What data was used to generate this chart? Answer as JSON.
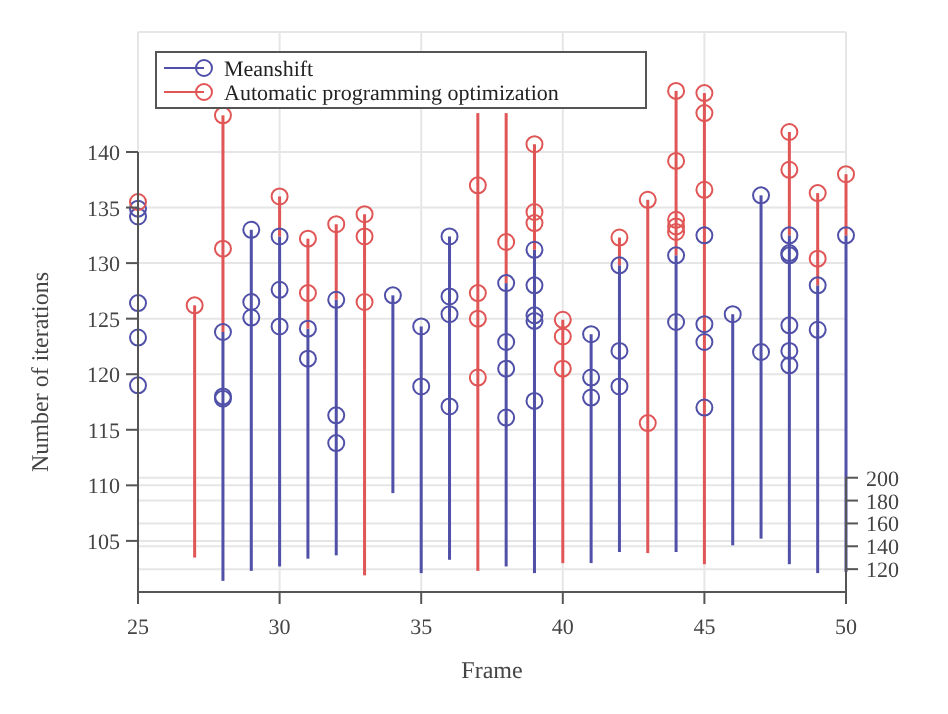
{
  "chart_data": {
    "type": "scatter",
    "xlabel": "Frame",
    "ylabel": "Number of iterations",
    "xlim": [
      25,
      50
    ],
    "xticks": [
      25,
      30,
      35,
      40,
      45,
      50
    ],
    "ylim": [
      100.4,
      150.8
    ],
    "yticks": [
      105,
      110,
      115,
      120,
      125,
      130,
      135,
      140
    ],
    "y2lim": [
      100,
      590
    ],
    "y2ticks": [
      120,
      140,
      160,
      180,
      200
    ],
    "grid": true,
    "legend": "top left",
    "marker": "circle",
    "series": [
      {
        "type": "bar",
        "color": "#5050a8",
        "x": [
          28,
          29,
          30,
          31,
          32,
          34,
          35,
          36,
          38,
          39,
          41,
          42,
          44,
          46,
          47,
          48,
          49,
          50
        ],
        "base": [
          101.4,
          102.3,
          102.7,
          103.4,
          103.7,
          109.3,
          102.1,
          103.3,
          102.7,
          102.1,
          103.0,
          104.0,
          104.0,
          104.6,
          105.2,
          102.9,
          102.1,
          102.2
        ],
        "values": [
          22.4,
          30.7,
          29.7,
          20.7,
          23.0,
          17.8,
          22.2,
          29.1,
          25.5,
          29.1,
          20.6,
          25.8,
          26.7,
          20.8,
          30.9,
          29.6,
          25.9,
          30.3
        ]
      },
      {
        "type": "bar",
        "color": "#e05555",
        "x": [
          27,
          28,
          30,
          31,
          32,
          33,
          37,
          38,
          39,
          40,
          42,
          43,
          44,
          45,
          48,
          49,
          50
        ],
        "base": [
          103.5,
          123.8,
          132.4,
          124.1,
          126.7,
          101.9,
          102.3,
          128.2,
          131.2,
          103.0,
          129.8,
          103.9,
          130.7,
          102.9,
          132.5,
          128.0,
          132.5
        ],
        "values": [
          22.7,
          19.5,
          3.6,
          8.1,
          6.8,
          32.5,
          41.2,
          15.3,
          9.5,
          21.9,
          2.5,
          31.8,
          14.8,
          42.4,
          9.3,
          8.3,
          5.5
        ]
      },
      {
        "name": "Meanshift",
        "color": "#5050a8",
        "x": [
          25,
          25,
          25,
          25,
          25,
          28,
          28,
          28,
          29,
          29,
          29,
          30,
          30,
          30,
          31,
          31,
          32,
          32,
          32,
          34,
          35,
          35,
          36,
          36,
          36,
          36,
          38,
          38,
          38,
          38,
          39,
          39,
          39,
          39,
          39,
          41,
          41,
          41,
          42,
          42,
          42,
          44,
          44,
          45,
          45,
          45,
          45,
          46,
          47,
          47,
          48,
          48,
          48,
          48,
          48,
          48,
          49,
          49,
          50
        ],
        "values": [
          134.9,
          134.2,
          126.4,
          123.3,
          119.0,
          123.8,
          118.0,
          117.8,
          133.0,
          126.5,
          125.1,
          132.4,
          127.6,
          124.3,
          124.1,
          121.4,
          126.7,
          116.3,
          113.8,
          127.1,
          124.3,
          118.9,
          132.4,
          127.0,
          125.4,
          117.1,
          128.2,
          122.9,
          120.5,
          116.1,
          131.2,
          128.0,
          125.3,
          124.8,
          117.6,
          123.6,
          119.7,
          117.9,
          129.8,
          122.1,
          118.9,
          130.7,
          124.7,
          132.5,
          124.5,
          122.9,
          117.0,
          125.4,
          136.1,
          122.0,
          132.5,
          130.9,
          130.7,
          124.4,
          122.1,
          120.8,
          128.0,
          124.0,
          132.5
        ]
      },
      {
        "name": "Automatic programming optimization",
        "color": "#e05555",
        "x": [
          25,
          27,
          28,
          28,
          30,
          31,
          31,
          32,
          33,
          33,
          33,
          37,
          37,
          37,
          37,
          38,
          39,
          39,
          39,
          40,
          40,
          40,
          42,
          43,
          43,
          44,
          44,
          44,
          44,
          44,
          45,
          45,
          45,
          48,
          48,
          49,
          49,
          50
        ],
        "values": [
          135.5,
          126.2,
          143.3,
          131.3,
          136.0,
          132.2,
          127.3,
          133.5,
          134.4,
          132.4,
          126.5,
          137.0,
          127.3,
          125.0,
          119.7,
          131.9,
          140.7,
          134.6,
          133.6,
          124.9,
          123.4,
          120.5,
          132.3,
          135.7,
          115.6,
          145.5,
          139.2,
          133.9,
          133.3,
          132.8,
          145.3,
          143.5,
          136.6,
          141.8,
          138.4,
          136.3,
          130.4,
          138.0
        ]
      }
    ]
  }
}
